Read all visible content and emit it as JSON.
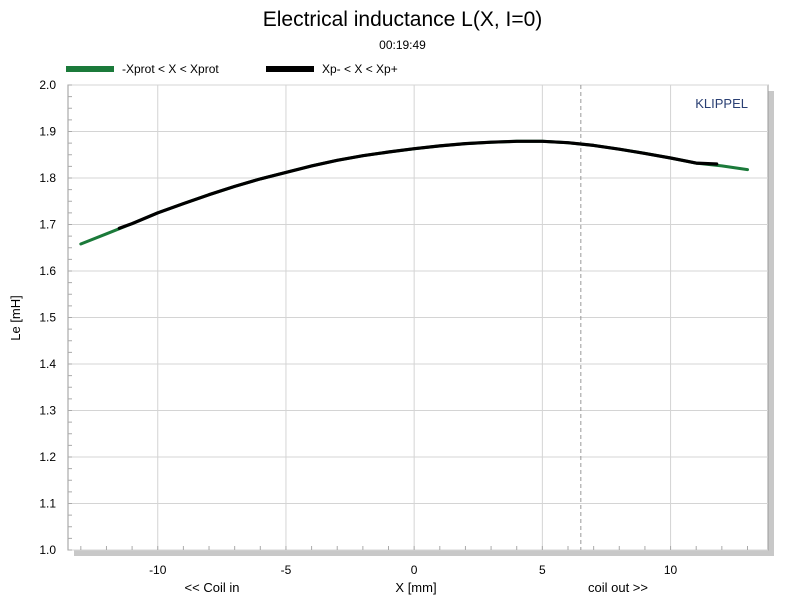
{
  "chart_data": {
    "type": "line",
    "title": "Electrical inductance L(X, I=0)",
    "subtitle": "00:19:49",
    "xlabel": "X [mm]",
    "ylabel": "Le [mH]",
    "xlim": [
      -13.5,
      13.8
    ],
    "ylim": [
      1.0,
      2.0
    ],
    "x_ticks": [
      -10,
      -5,
      0,
      5,
      10
    ],
    "y_ticks": [
      1.0,
      1.1,
      1.2,
      1.3,
      1.4,
      1.5,
      1.6,
      1.7,
      1.8,
      1.9,
      2.0
    ],
    "x_tick_labels": [
      "-10",
      "-5",
      "0",
      "5",
      "10"
    ],
    "y_tick_labels": [
      "1.0",
      "1.1",
      "1.2",
      "1.3",
      "1.4",
      "1.5",
      "1.6",
      "1.7",
      "1.8",
      "1.9",
      "2.0"
    ],
    "grid": true,
    "legend_position": "top-left",
    "annotations": {
      "left": "<< Coil in",
      "right": "coil out >>",
      "watermark": "KLIPPEL"
    },
    "reference_line_x": 6.5,
    "series": [
      {
        "name": "-Xprot < X < Xprot",
        "color": "#1b7a3a",
        "x": [
          -13.0,
          -12.0,
          -11.0,
          -10.0,
          -9.0,
          -8.0,
          -7.0,
          -6.0,
          -5.0,
          -4.0,
          -3.0,
          -2.0,
          -1.0,
          0.0,
          1.0,
          2.0,
          3.0,
          4.0,
          4.5,
          5.0,
          6.0,
          7.0,
          8.0,
          9.0,
          10.0,
          11.0,
          12.0,
          13.0
        ],
        "values": [
          1.658,
          1.68,
          1.702,
          1.725,
          1.745,
          1.764,
          1.782,
          1.798,
          1.812,
          1.826,
          1.838,
          1.848,
          1.856,
          1.863,
          1.869,
          1.874,
          1.877,
          1.879,
          1.879,
          1.879,
          1.876,
          1.87,
          1.862,
          1.853,
          1.843,
          1.832,
          1.826,
          1.818
        ]
      },
      {
        "name": "Xp- < X < Xp+",
        "color": "#000000",
        "x": [
          -11.5,
          -11.0,
          -10.0,
          -9.0,
          -8.0,
          -7.0,
          -6.0,
          -5.0,
          -4.0,
          -3.0,
          -2.0,
          -1.0,
          0.0,
          1.0,
          2.0,
          3.0,
          4.0,
          4.5,
          5.0,
          6.0,
          7.0,
          8.0,
          9.0,
          10.0,
          11.0,
          11.8
        ],
        "values": [
          1.692,
          1.702,
          1.725,
          1.745,
          1.764,
          1.782,
          1.798,
          1.812,
          1.826,
          1.838,
          1.848,
          1.856,
          1.863,
          1.869,
          1.874,
          1.877,
          1.879,
          1.879,
          1.879,
          1.876,
          1.87,
          1.862,
          1.853,
          1.843,
          1.832,
          1.83
        ]
      }
    ]
  }
}
